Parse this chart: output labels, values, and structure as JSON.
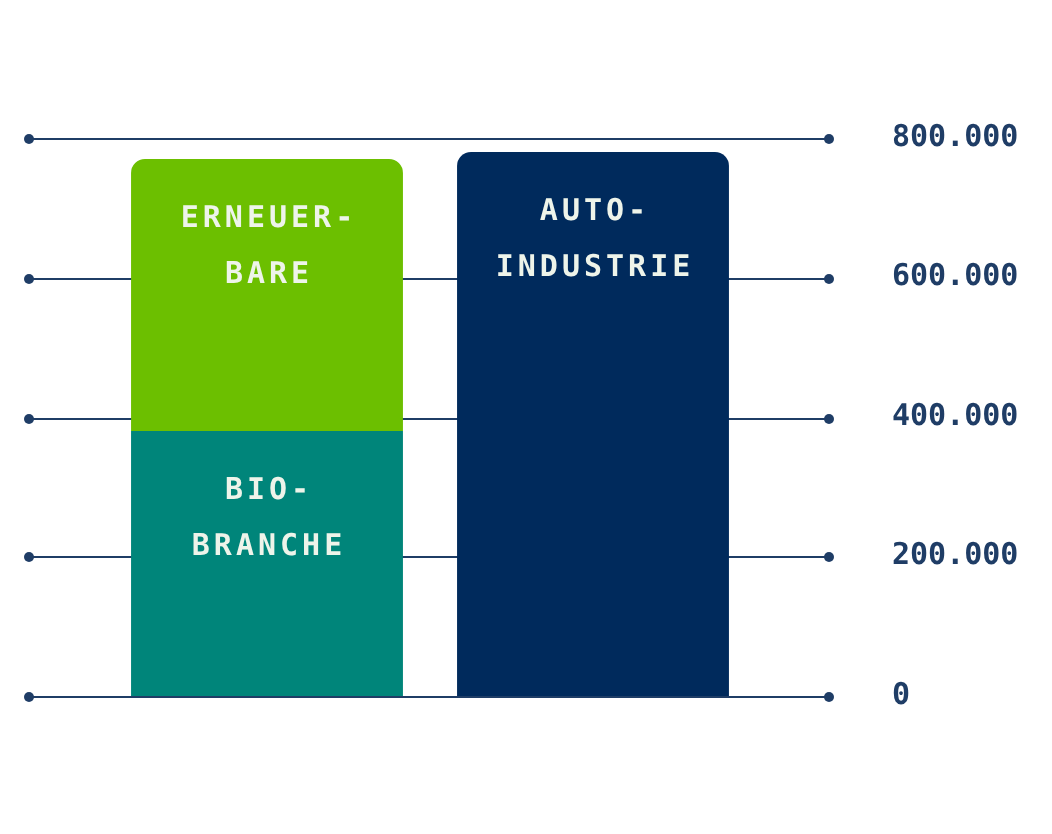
{
  "chart_data": {
    "type": "bar",
    "stacked": true,
    "categories": [
      null,
      null
    ],
    "series": [
      {
        "name": "BIO- BRANCHE",
        "color": "#00857a",
        "values": [
          380000,
          null
        ]
      },
      {
        "name": "ERNEUER- BARE",
        "color": "#6cbf00",
        "values": [
          390000,
          null
        ]
      },
      {
        "name": "AUTO- INDUSTRIE",
        "color": "#002a5c",
        "values": [
          null,
          780000
        ]
      }
    ],
    "ylim": [
      0,
      800000
    ],
    "yticks": [
      {
        "value": 0,
        "label": "0"
      },
      {
        "value": 200000,
        "label": "200.000"
      },
      {
        "value": 400000,
        "label": "400.000"
      },
      {
        "value": 600000,
        "label": "600.000"
      },
      {
        "value": 800000,
        "label": "800.000"
      }
    ],
    "grid": "y",
    "legend": false
  }
}
